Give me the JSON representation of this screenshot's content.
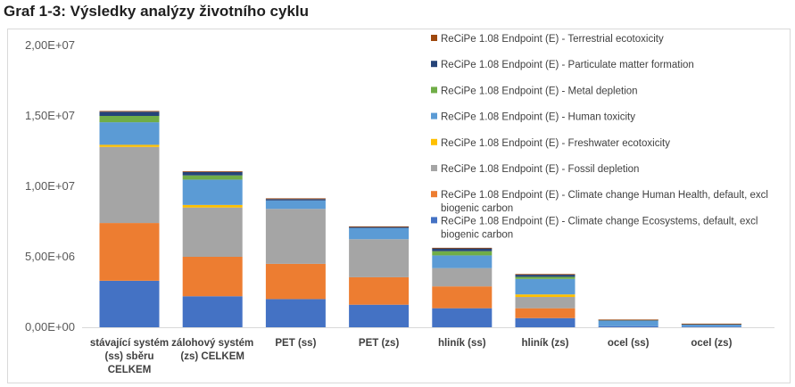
{
  "title": "Graf 1-3: Výsledky analýzy životního cyklu",
  "chart_data": {
    "type": "bar",
    "stacked": true,
    "title": "",
    "xlabel": "",
    "ylabel": "",
    "ylim": [
      0,
      20000000
    ],
    "y_ticks": [
      "0,00E+00",
      "5,00E+06",
      "1,00E+07",
      "1,50E+07",
      "2,00E+07"
    ],
    "grid": false,
    "legend_position": "right",
    "categories": [
      [
        "stávající systém",
        "(ss) sběru",
        "CELKEM"
      ],
      [
        "zálohový systém",
        "(zs) CELKEM"
      ],
      [
        "PET (ss)"
      ],
      [
        "PET (zs)"
      ],
      [
        "hliník (ss)"
      ],
      [
        "hliník (zs)"
      ],
      [
        "ocel (ss)"
      ],
      [
        "ocel (zs)"
      ]
    ],
    "series": [
      {
        "name": [
          "ReCiPe 1.08 Endpoint (E) - Climate change Ecosystems, default, excl",
          "biogenic carbon"
        ],
        "color": "#4472C4",
        "values": [
          3300000,
          2200000,
          2000000,
          1600000,
          1350000,
          650000,
          80000,
          50000
        ]
      },
      {
        "name": [
          "ReCiPe 1.08 Endpoint (E) - Climate change Human Health, default, excl",
          "biogenic carbon"
        ],
        "color": "#ED7D31",
        "values": [
          4100000,
          2800000,
          2500000,
          1950000,
          1550000,
          700000,
          0,
          0
        ]
      },
      {
        "name": [
          "ReCiPe 1.08 Endpoint (E) - Fossil depletion"
        ],
        "color": "#A5A5A5",
        "values": [
          5400000,
          3500000,
          3900000,
          2700000,
          1300000,
          800000,
          0,
          0
        ]
      },
      {
        "name": [
          "ReCiPe 1.08 Endpoint (E) - Freshwater ecotoxicity"
        ],
        "color": "#FFC000",
        "values": [
          150000,
          180000,
          0,
          0,
          0,
          180000,
          0,
          0
        ]
      },
      {
        "name": [
          "ReCiPe 1.08 Endpoint (E) - Human toxicity"
        ],
        "color": "#5B9BD5",
        "values": [
          1600000,
          1800000,
          600000,
          800000,
          900000,
          1100000,
          420000,
          170000
        ]
      },
      {
        "name": [
          "ReCiPe 1.08 Endpoint (E) - Metal depletion"
        ],
        "color": "#70AD47",
        "values": [
          450000,
          300000,
          0,
          0,
          300000,
          150000,
          30000,
          20000
        ]
      },
      {
        "name": [
          "ReCiPe 1.08 Endpoint (E) - Particulate matter formation"
        ],
        "color": "#264478",
        "values": [
          300000,
          250000,
          100000,
          80000,
          200000,
          150000,
          10000,
          10000
        ]
      },
      {
        "name": [
          "ReCiPe 1.08 Endpoint (E) - Terrestrial ecotoxicity"
        ],
        "color": "#9E480E",
        "values": [
          50000,
          40000,
          50000,
          30000,
          40000,
          50000,
          5000,
          5000
        ]
      }
    ]
  }
}
